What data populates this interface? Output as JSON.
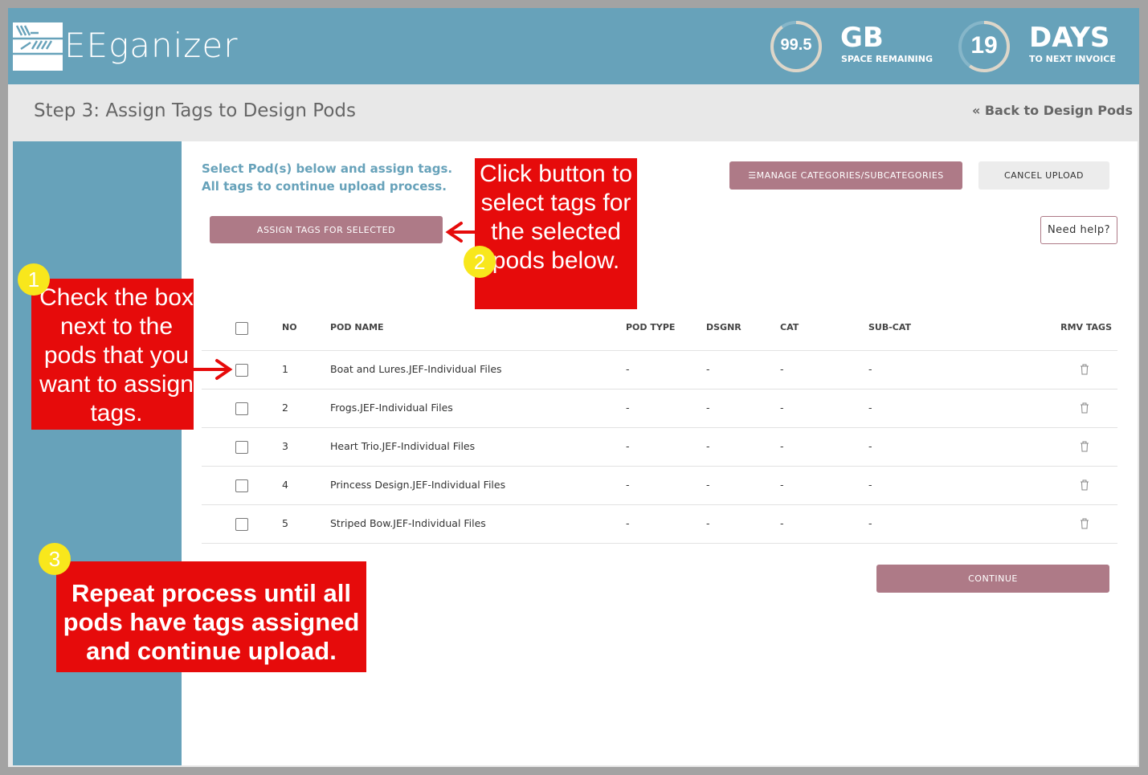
{
  "app": {
    "name": "EEganizer"
  },
  "stats": {
    "space": {
      "value": "99.5",
      "unit": "GB",
      "label": "SPACE REMAINING",
      "fill": 0.9
    },
    "invoice": {
      "value": "19",
      "unit": "DAYS",
      "label": "TO NEXT INVOICE",
      "fill": 0.6
    },
    "ring_color": "#ddd6c9"
  },
  "page": {
    "title": "Step 3: Assign Tags to Design Pods",
    "back_link": "« Back to Design Pods"
  },
  "main": {
    "intro": "Select Pod(s) below and assign tags. All tags to continue upload process.",
    "assign_button": "ASSIGN TAGS FOR SELECTED",
    "manage_button": "MANAGE CATEGORIES/SUBCATEGORIES",
    "cancel_button": "CANCEL UPLOAD",
    "help_button": "Need help?",
    "continue_button": "CONTINUE"
  },
  "table": {
    "headers": [
      "NO",
      "POD NAME",
      "POD TYPE",
      "DSGNR",
      "CAT",
      "SUB-CAT",
      "RMV TAGS"
    ],
    "rows": [
      {
        "no": "1",
        "name": "Boat and Lures.JEF-Individual Files",
        "type": "-",
        "dsgnr": "-",
        "cat": "-",
        "subcat": "-"
      },
      {
        "no": "2",
        "name": "Frogs.JEF-Individual Files",
        "type": "-",
        "dsgnr": "-",
        "cat": "-",
        "subcat": "-"
      },
      {
        "no": "3",
        "name": "Heart Trio.JEF-Individual Files",
        "type": "-",
        "dsgnr": "-",
        "cat": "-",
        "subcat": "-"
      },
      {
        "no": "4",
        "name": "Princess Design.JEF-Individual Files",
        "type": "-",
        "dsgnr": "-",
        "cat": "-",
        "subcat": "-"
      },
      {
        "no": "5",
        "name": "Striped Bow.JEF-Individual Files",
        "type": "-",
        "dsgnr": "-",
        "cat": "-",
        "subcat": "-"
      }
    ]
  },
  "callouts": [
    {
      "num": "1",
      "text": "Check the box next to the pods that you want to assign tags."
    },
    {
      "num": "2",
      "text": "Click button to select tags for the selected pods below."
    },
    {
      "num": "3",
      "text": "Repeat process until all pods have tags assigned and continue upload."
    }
  ],
  "colors": {
    "brand": "#67a2ba",
    "button": "#ae7a87",
    "callout": "#e60b0b",
    "badge": "#f8e71c"
  }
}
